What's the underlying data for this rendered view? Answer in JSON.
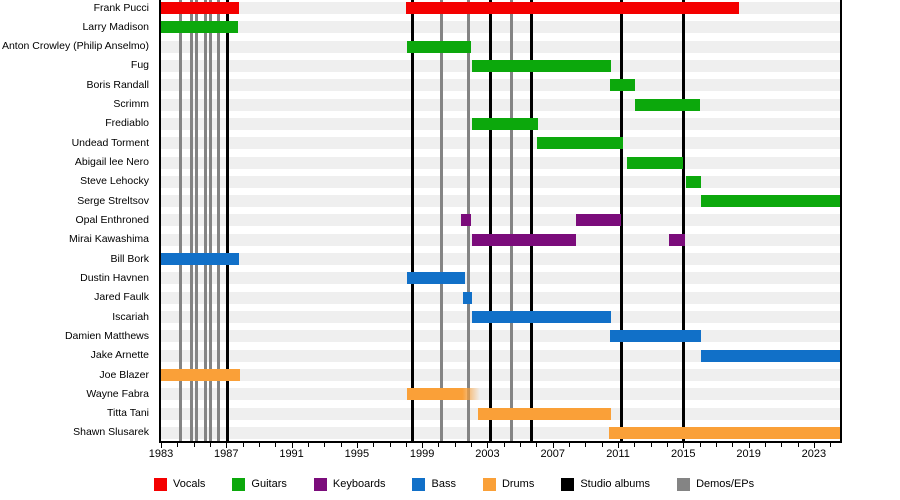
{
  "chart_data": {
    "type": "bar",
    "subtype": "band-member-timeline",
    "title": "",
    "x_axis": {
      "min_year": 1983,
      "max_year": 2024.6,
      "tick_step": 1,
      "label_step": 4,
      "tick_labels": [
        "1983",
        "1987",
        "1991",
        "1995",
        "1999",
        "2003",
        "2007",
        "2011",
        "2015",
        "2019",
        "2023"
      ]
    },
    "colors": {
      "vocals": "#F40000",
      "guitars": "#0CA80C",
      "keyboards": "#7B0C7B",
      "bass": "#1170C8",
      "drums": "#FAA038",
      "studio_album": "#000000",
      "demo_ep": "#848484",
      "row_stripe": "#EFEFEF",
      "background": "#FFFFFF"
    },
    "members": [
      {
        "name": "Frank Pucci",
        "instrument": "vocals",
        "segments": [
          [
            1983.0,
            1987.8
          ],
          [
            1998.0,
            2018.4
          ]
        ]
      },
      {
        "name": "Larry Madison",
        "instrument": "guitars",
        "segments": [
          [
            1983.0,
            1987.7
          ]
        ]
      },
      {
        "name": "Anton Crowley (Philip Anselmo)",
        "instrument": "guitars",
        "segments": [
          [
            1998.05,
            2002.0
          ]
        ]
      },
      {
        "name": "Fug",
        "instrument": "guitars",
        "segments": [
          [
            2002.05,
            2010.55
          ]
        ]
      },
      {
        "name": "Boris Randall",
        "instrument": "guitars",
        "segments": [
          [
            2010.5,
            2012.05
          ]
        ]
      },
      {
        "name": "Scrimm",
        "instrument": "guitars",
        "segments": [
          [
            2012.05,
            2016.05
          ]
        ]
      },
      {
        "name": "Frediablo",
        "instrument": "guitars",
        "segments": [
          [
            2002.05,
            2006.1
          ]
        ]
      },
      {
        "name": "Undead Torment",
        "instrument": "guitars",
        "segments": [
          [
            2006.05,
            2011.3
          ]
        ]
      },
      {
        "name": "Abigail lee Nero",
        "instrument": "guitars",
        "segments": [
          [
            2011.55,
            2015.0
          ]
        ]
      },
      {
        "name": "Steve Lehocky",
        "instrument": "guitars",
        "segments": [
          [
            2015.15,
            2016.1
          ]
        ]
      },
      {
        "name": "Serge Streltsov",
        "instrument": "guitars",
        "segments": [
          [
            2016.1,
            2024.6
          ]
        ]
      },
      {
        "name": "Opal Enthroned",
        "instrument": "keyboards",
        "segments": [
          [
            2001.35,
            2002.0
          ],
          [
            2008.45,
            2011.2
          ]
        ]
      },
      {
        "name": "Mirai Kawashima",
        "instrument": "keyboards",
        "segments": [
          [
            2002.05,
            2008.45
          ],
          [
            2014.15,
            2015.1
          ]
        ]
      },
      {
        "name": "Bill Bork",
        "instrument": "bass",
        "segments": [
          [
            1983.0,
            1987.8
          ]
        ]
      },
      {
        "name": "Dustin Havnen",
        "instrument": "bass",
        "segments": [
          [
            1998.05,
            2001.6
          ]
        ]
      },
      {
        "name": "Jared Faulk",
        "instrument": "bass",
        "segments": [
          [
            2001.5,
            2002.05
          ]
        ]
      },
      {
        "name": "Iscariah",
        "instrument": "bass",
        "segments": [
          [
            2002.05,
            2010.55
          ]
        ]
      },
      {
        "name": "Damien Matthews",
        "instrument": "bass",
        "segments": [
          [
            2010.5,
            2016.1
          ]
        ]
      },
      {
        "name": "Jake Arnette",
        "instrument": "bass",
        "segments": [
          [
            2016.1,
            2024.6
          ]
        ]
      },
      {
        "name": "Joe Blazer",
        "instrument": "drums",
        "segments": [
          [
            1983.0,
            1987.85
          ]
        ]
      },
      {
        "name": "Wayne Fabra",
        "instrument": "drums",
        "segments": [
          [
            1998.05,
            2002.55
          ]
        ],
        "fade_right": true
      },
      {
        "name": "Titta Tani",
        "instrument": "drums",
        "segments": [
          [
            2002.45,
            2010.55
          ]
        ]
      },
      {
        "name": "Shawn Slusarek",
        "instrument": "drums",
        "segments": [
          [
            2010.45,
            2024.6
          ]
        ]
      }
    ],
    "event_lines": {
      "studio_albums": [
        1987.1,
        1998.4,
        2003.2,
        2005.7,
        2011.2,
        2015.0
      ],
      "demos_eps": [
        1984.2,
        1984.85,
        1985.2,
        1985.75,
        1986.05,
        1986.55,
        2000.2,
        2001.85,
        2004.5
      ]
    },
    "legend": [
      {
        "label": "Vocals",
        "color_key": "vocals"
      },
      {
        "label": "Guitars",
        "color_key": "guitars"
      },
      {
        "label": "Keyboards",
        "color_key": "keyboards"
      },
      {
        "label": "Bass",
        "color_key": "bass"
      },
      {
        "label": "Drums",
        "color_key": "drums"
      },
      {
        "label": "Studio albums",
        "color_key": "studio_album"
      },
      {
        "label": "Demos/EPs",
        "color_key": "demo_ep"
      }
    ]
  }
}
